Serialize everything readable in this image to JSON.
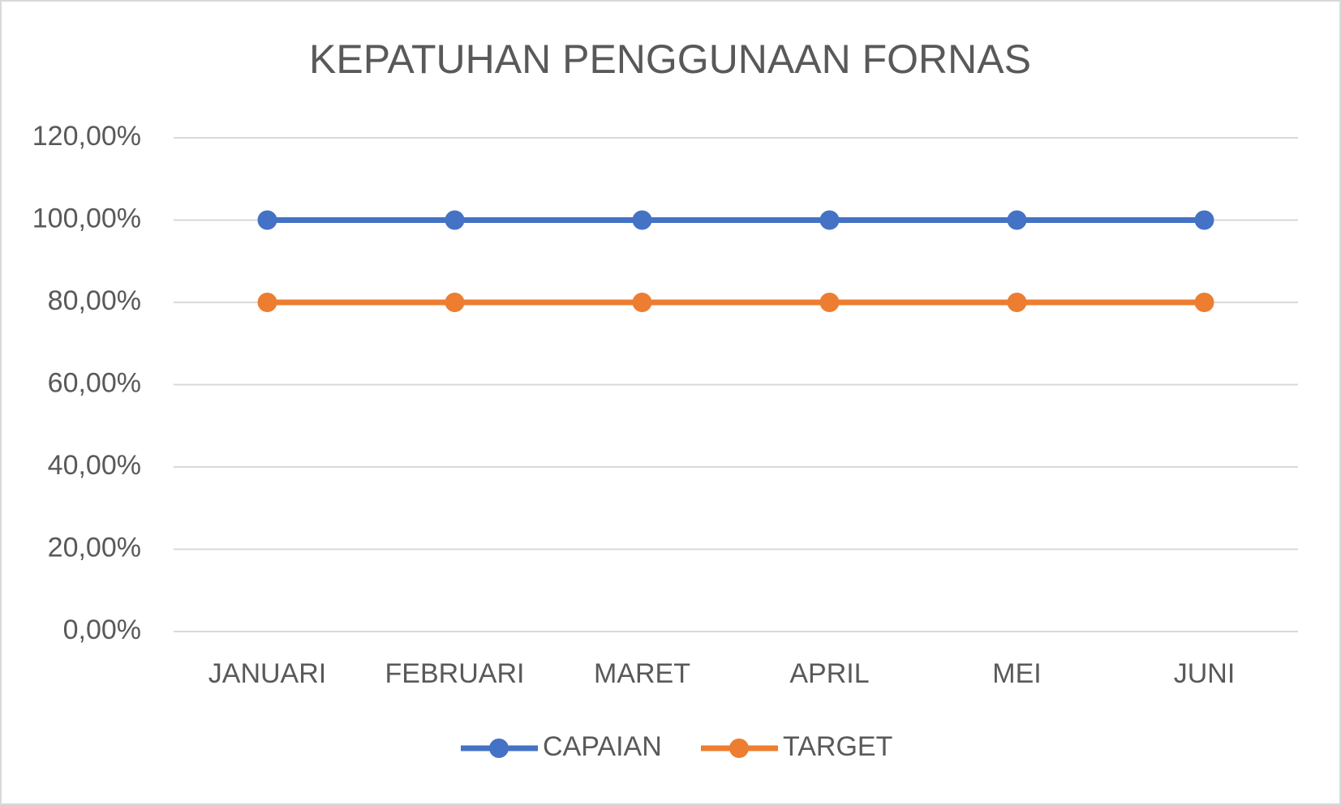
{
  "chart_data": {
    "type": "line",
    "title": "KEPATUHAN PENGGUNAAN FORNAS",
    "categories": [
      "JANUARI",
      "FEBRUARI",
      "MARET",
      "APRIL",
      "MEI",
      "JUNI"
    ],
    "series": [
      {
        "name": "CAPAIAN",
        "color": "#4472c4",
        "values": [
          100,
          100,
          100,
          100,
          100,
          100
        ]
      },
      {
        "name": "TARGET",
        "color": "#ed7d31",
        "values": [
          80,
          80,
          80,
          80,
          80,
          80
        ]
      }
    ],
    "ylim": [
      0,
      120
    ],
    "yticks": [
      {
        "value": 0,
        "label": "0,00%"
      },
      {
        "value": 20,
        "label": "20,00%"
      },
      {
        "value": 40,
        "label": "40,00%"
      },
      {
        "value": 60,
        "label": "60,00%"
      },
      {
        "value": 80,
        "label": "80,00%"
      },
      {
        "value": 100,
        "label": "100,00%"
      },
      {
        "value": 120,
        "label": "120,00%"
      }
    ],
    "grid": true,
    "legend": "bottom"
  }
}
